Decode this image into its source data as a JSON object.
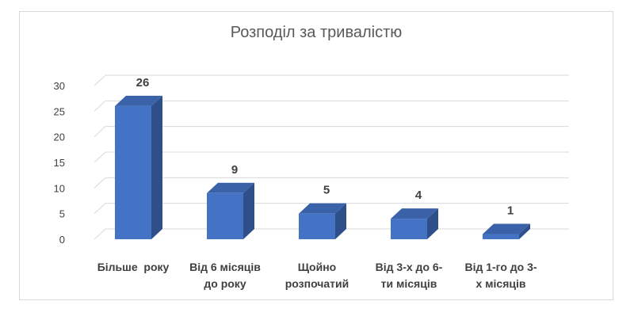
{
  "chart_data": {
    "type": "bar",
    "style": "3d-column",
    "title": "Розподіл за тривалістю",
    "categories": [
      [
        "Більше  року"
      ],
      [
        "Від 6 місяців",
        "до року"
      ],
      [
        "Щойно",
        "розпочатий"
      ],
      [
        "Від 3-х до 6-",
        "ти місяців"
      ],
      [
        "Від 1-го до 3-",
        "х місяців"
      ]
    ],
    "values": [
      26,
      9,
      5,
      4,
      1
    ],
    "data_labels": [
      "26",
      "9",
      "5",
      "4",
      "1"
    ],
    "xlabel": "",
    "ylabel": "",
    "ylim": [
      0,
      30
    ],
    "yticks": [
      0,
      5,
      10,
      15,
      20,
      25,
      30
    ],
    "grid": true,
    "legend": "none",
    "colors": {
      "front": "#4472c4",
      "side": "#2f4f8a",
      "top": "#3a62a8",
      "grid": "#d9d9d9"
    }
  }
}
